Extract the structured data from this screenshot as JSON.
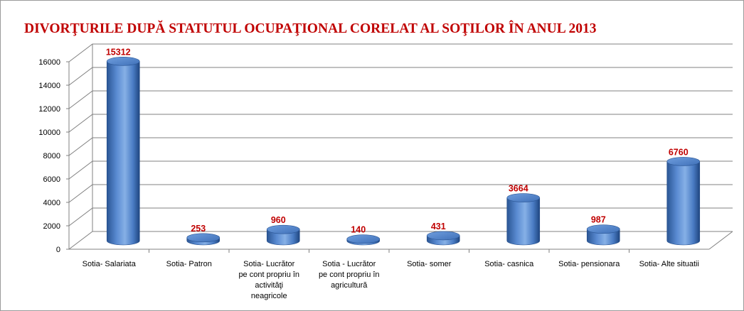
{
  "chart_data": {
    "type": "bar",
    "title": "DIVORŢURILE DUPĂ STATUTUL OCUPAŢIONAL CORELAT AL SOŢILOR ÎN ANUL 2013",
    "xlabel": "",
    "ylabel": "",
    "ylim": [
      0,
      16000
    ],
    "yticks": [
      "0",
      "2000",
      "4000",
      "6000",
      "8000",
      "10000",
      "12000",
      "14000",
      "16000"
    ],
    "grid": true,
    "legend": "none",
    "categories": [
      [
        "Sotia- Salariata"
      ],
      [
        "Sotia- Patron"
      ],
      [
        "Sotia-  Lucrător",
        "pe cont propriu în",
        "activităţi",
        "neagricole"
      ],
      [
        "Sotia - Lucrător",
        "pe cont propriu în",
        "agricultură"
      ],
      [
        "Sotia- somer"
      ],
      [
        "Sotia- casnica"
      ],
      [
        "Sotia- pensionara"
      ],
      [
        "Sotia- Alte situatii"
      ]
    ],
    "values": [
      15312,
      253,
      960,
      140,
      431,
      3664,
      987,
      6760
    ],
    "data_labels": [
      "15312",
      "253",
      "960",
      "140",
      "431",
      "3664",
      "987",
      "6760"
    ]
  },
  "colors": {
    "title": "#c00000",
    "data_label": "#c00000",
    "bar_light": "#7fa9e2",
    "bar_mid": "#4a7cc4",
    "bar_dark": "#2a5594",
    "bar_top": "#5d8fd6",
    "grid": "#808080",
    "axis_text": "#000000"
  }
}
